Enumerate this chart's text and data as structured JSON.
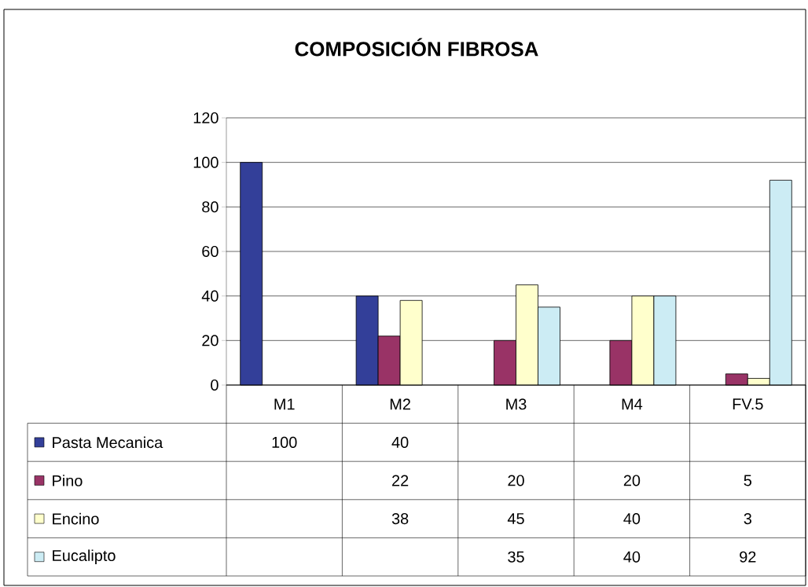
{
  "chart_data": {
    "type": "bar",
    "title": "COMPOSICIÓN FIBROSA",
    "categories": [
      "M1",
      "M2",
      "M3",
      "M4",
      "FV.5"
    ],
    "series": [
      {
        "name": "Pasta Mecanica",
        "color": "#333f99",
        "values": [
          100,
          40,
          null,
          null,
          null
        ]
      },
      {
        "name": "Pino",
        "color": "#993366",
        "values": [
          null,
          22,
          20,
          20,
          5
        ]
      },
      {
        "name": "Encino",
        "color": "#ffffcc",
        "values": [
          null,
          38,
          45,
          40,
          3
        ]
      },
      {
        "name": "Eucalipto",
        "color": "#ccecf4",
        "values": [
          null,
          null,
          35,
          40,
          92
        ]
      }
    ],
    "ylim": [
      0,
      120
    ],
    "yticks": [
      0,
      20,
      40,
      60,
      80,
      100,
      120
    ],
    "grid": "y",
    "data_labels": true,
    "legend": "bottom"
  }
}
